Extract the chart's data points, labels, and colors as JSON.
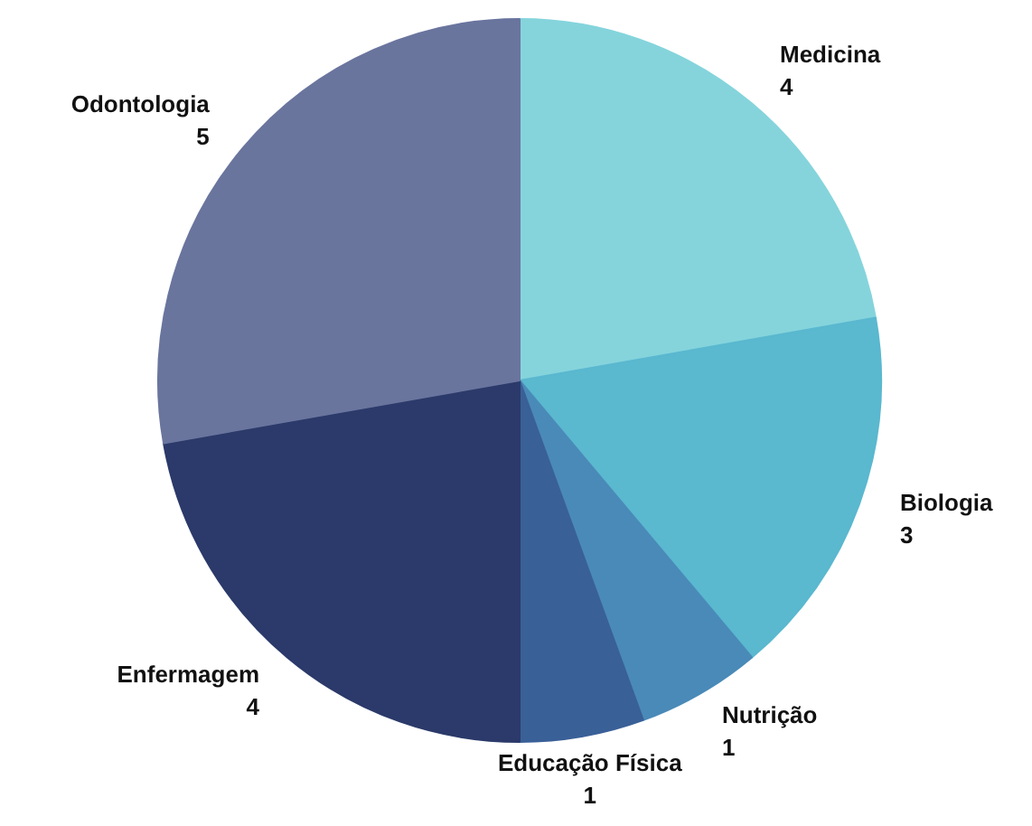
{
  "chart_data": {
    "type": "pie",
    "categories": [
      "Medicina",
      "Biologia",
      "Nutrição",
      "Educação Física",
      "Enfermagem",
      "Odontologia"
    ],
    "values": [
      4,
      3,
      1,
      1,
      4,
      5
    ],
    "colors": [
      "#85d4dc",
      "#5ab8cf",
      "#4a8ab8",
      "#3a6098",
      "#2b3a6a",
      "#6a759e"
    ],
    "data_labels": true
  }
}
